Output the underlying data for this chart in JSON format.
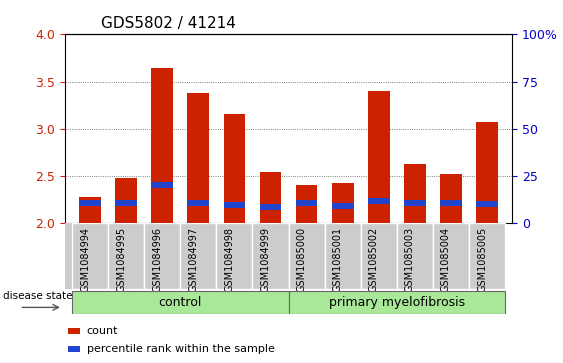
{
  "title": "GDS5802 / 41214",
  "categories": [
    "GSM1084994",
    "GSM1084995",
    "GSM1084996",
    "GSM1084997",
    "GSM1084998",
    "GSM1084999",
    "GSM1085000",
    "GSM1085001",
    "GSM1085002",
    "GSM1085003",
    "GSM1085004",
    "GSM1085005"
  ],
  "red_values": [
    2.28,
    2.48,
    3.65,
    3.38,
    3.16,
    2.54,
    2.4,
    2.43,
    3.4,
    2.63,
    2.52,
    3.07
  ],
  "blue_values": [
    0.065,
    0.065,
    0.065,
    0.065,
    0.065,
    0.065,
    0.065,
    0.065,
    0.065,
    0.065,
    0.065,
    0.065
  ],
  "blue_bottoms": [
    2.18,
    2.18,
    2.37,
    2.18,
    2.16,
    2.14,
    2.18,
    2.15,
    2.2,
    2.18,
    2.18,
    2.17
  ],
  "ylim": [
    2.0,
    4.0
  ],
  "yticks_left": [
    2.0,
    2.5,
    3.0,
    3.5,
    4.0
  ],
  "yticks_right": [
    0,
    25,
    50,
    75,
    100
  ],
  "ytick_labels_right": [
    "0",
    "25",
    "50",
    "75",
    "100%"
  ],
  "bar_width": 0.6,
  "red_color": "#cc2200",
  "blue_color": "#2244cc",
  "ctrl_n": 6,
  "mye_n": 6,
  "control_label": "control",
  "myelofibrosis_label": "primary myelofibrosis",
  "disease_state_label": "disease state",
  "group_bg_color": "#aae899",
  "tick_label_bg": "#cccccc",
  "legend_count": "count",
  "legend_percentile": "percentile rank within the sample",
  "left_tick_color": "#cc2200",
  "right_tick_color": "#0000cc",
  "grid_linestyle": "dotted",
  "grid_color": "#555555",
  "title_fontsize": 11,
  "axis_fontsize": 9,
  "label_fontsize": 7,
  "group_fontsize": 9,
  "legend_fontsize": 8
}
